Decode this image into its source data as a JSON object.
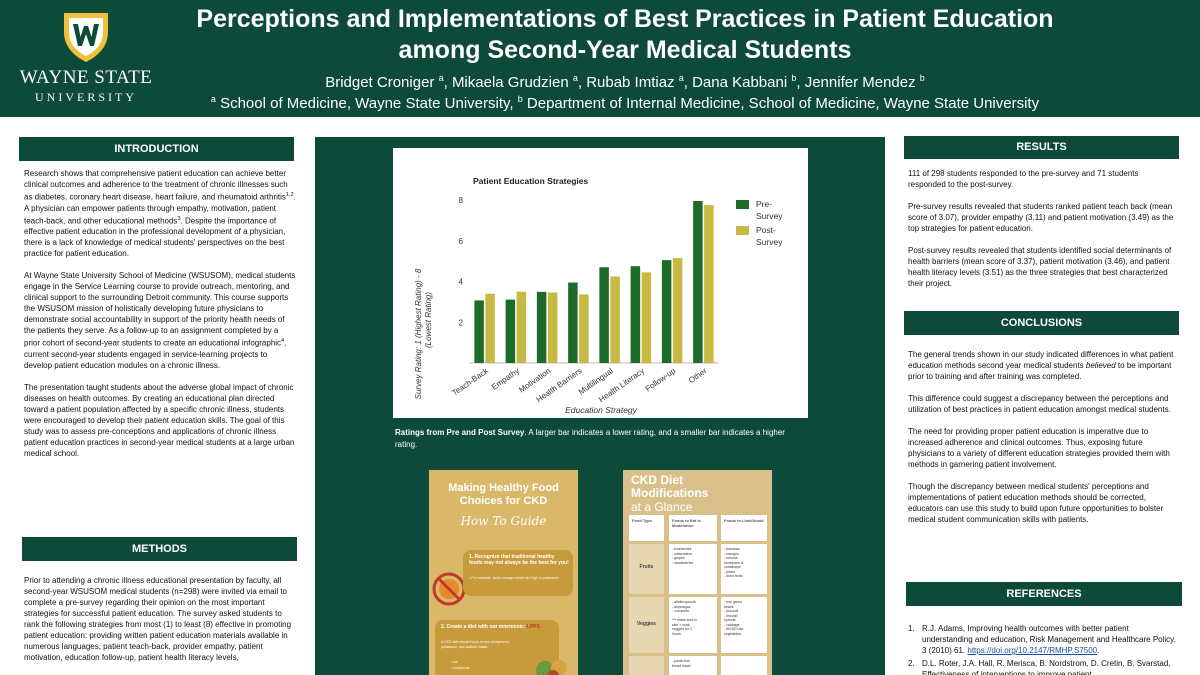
{
  "header": {
    "logo_wordmark": "WAYNE STATE",
    "logo_sub": "UNIVERSITY",
    "title_line1": "Perceptions and Implementations of Best Practices in Patient Education",
    "title_line2": "among Second-Year Medical Students",
    "authors": [
      {
        "name": "Bridget Croniger",
        "sup": "a"
      },
      {
        "name": "Mikaela Grudzien",
        "sup": "a"
      },
      {
        "name": "Rubab Imtiaz",
        "sup": "a"
      },
      {
        "name": "Dana Kabbani",
        "sup": "b"
      },
      {
        "name": "Jennifer Mendez",
        "sup": "b"
      }
    ],
    "affil_a_sup": "a",
    "affil_a": "School of Medicine, Wayne State University,",
    "affil_b_sup": "b",
    "affil_b": "Department of Internal Medicine, School of Medicine, Wayne State University"
  },
  "introduction": {
    "heading": "INTRODUCTION",
    "p1_a": "Research shows that comprehensive patient education can achieve better clinical outcomes and adherence to the treatment of chronic illnesses such as diabetes, coronary heart disease, heart failure, and rheumatoid arthritis",
    "p1_sup1": "1,2",
    "p1_b": ". A physician can empower patients through empathy, motivation, patient teach-back, and other educational methods",
    "p1_sup2": "3",
    "p1_c": ". Despite the importance of effective patient education in the professional development of a physician, there is a lack of knowledge of medical students' perspectives on the best practice for patient education.",
    "p2_a": "At Wayne State University School of Medicine (WSUSOM), medical students engage in the Service Learning course to provide outreach, mentoring, and clinical support to the surrounding Detroit community. This course supports the WSUSOM mission of holistically developing future physicians to demonstrate social accountability in support of the priority health needs of the patients they serve. As a follow-up to an assignment completed by a prior cohort of second-year students to create an educational infographic",
    "p2_sup": "4",
    "p2_b": ", current second-year students engaged in service-learning projects to develop patient education modules on a chronic illness.",
    "p3": "The presentation taught students about the adverse global impact of chronic diseases on health outcomes. By creating an educational plan directed toward a patient population affected by a specific chronic illness, students were encouraged to develop their patient education skills. The goal of this study was to assess pre-conceptions and applications of chronic illness patient education practices in second-year medical students at a large urban medical school."
  },
  "methods": {
    "heading": "METHODS",
    "p1": "Prior to attending a chronic illness educational presentation by faculty, all second-year WSUSOM medical students (n=298) were invited via email to complete a pre-survey regarding their opinion on the most important strategies for successful patient education. The survey asked students to rank the following strategies from most (1) to least (8) effective in promoting patient education: providing written patient education materials available in numerous languages, patient teach-back, provider empathy, patient motivation, education follow-up, patient health literacy levels,"
  },
  "results": {
    "heading": "RESULTS",
    "p1": "111 of 298 students responded to the pre-survey and 71 students responded to the post-survey.",
    "p2": "Pre-survey results revealed that students ranked patient teach back (mean score of 3.07), provider empathy (3.11) and patient motivation (3.49) as the top strategies for patient education.",
    "p3": "Post-survey results revealed that students identified social determinants of health barriers (mean score of 3.37), patient motivation (3.46), and patient health literacy levels (3.51) as the three strategies that best characterized their project."
  },
  "conclusions": {
    "heading": "CONCLUSIONS",
    "p1_a": "The general trends shown in our study indicated differences in what patient education methods second year medical students ",
    "p1_em": "believed",
    "p1_b": " to be important prior to training and after training was completed.",
    "p2": "This difference could suggest a discrepancy between the perceptions and utilization of best practices in patient education amongst medical students.",
    "p3": "The need for providing proper patient education is imperative due to increased adherence and clinical outcomes.  Thus, exposing future physicians to a variety of different education strategies provided them with methods in garnering patient involvement.",
    "p4": "Though the discrepancy between medical students' perceptions and implementations of patient education methods should be corrected, educators can use this study to build upon future opportunities to bolster medical student communication skills with patients."
  },
  "references": {
    "heading": "REFERENCES",
    "r1_num": "1.",
    "r1": "R.J. Adams, Improving health outcomes with better patient understanding and education, Risk Management and Healthcare Policy. 3 (2010) 61. ",
    "r1_link": "https://doi.org/10.2147/RMHP.S7500",
    "r1_end": ".",
    "r2_num": "2.",
    "r2": "D.L. Roter, J.A. Hall, R. Merisca, B. Nordstrom, D. Cretin, B. Svarstad, Effectiveness of interventions to improve patient"
  },
  "chart_caption": {
    "bold": "Ratings from Pre and Post Survey",
    "rest": ". A larger bar indicates a lower rating, and a smaller bar indicates a higher rating."
  },
  "chart_data": {
    "type": "bar",
    "title": "Patient Education Strategies",
    "xlabel": "Education Strategy",
    "ylabel_line1": "Survey Rating:    1 (Highest Rating) - 8",
    "ylabel_line2": "(Lowest Rating)",
    "ylim": [
      0,
      8
    ],
    "yticks": [
      2,
      4,
      6,
      8
    ],
    "categories": [
      "Teach-Back",
      "Empathy",
      "Motivation",
      "Health Barriers",
      "Multilingual",
      "Health Literacy",
      "Follow-up",
      "Other"
    ],
    "series": [
      {
        "name": "Pre-Survey",
        "name_lines": [
          "Pre-",
          "Survey"
        ],
        "color": "#1e6b2a",
        "values": [
          3.07,
          3.11,
          3.49,
          3.95,
          4.7,
          4.75,
          5.05,
          7.95
        ]
      },
      {
        "name": "Post-Survey",
        "name_lines": [
          "Post-",
          "Survey"
        ],
        "color": "#c7b941",
        "values": [
          3.4,
          3.5,
          3.46,
          3.37,
          4.25,
          4.45,
          5.15,
          7.75
        ]
      }
    ],
    "legend": "right",
    "grid": false
  },
  "flyer1": {
    "title_line1": "Making Healthy Food",
    "title_line2": "Choices for CKD",
    "script": "How To Guide",
    "tip1": "1. Recognize that traditional healthy foods may not always be the best for you!",
    "tip1_note": "• For example, avoid oranges which are high in potassium",
    "tip2_a": "2. Create a diet with our mnemonic: ",
    "tip2_em": "LPPS",
    "tip2_note": "A CKD diet should focus on low phosphorus, potassium, and sodium intake:",
    "tip2_items": [
      "• ow",
      "• hosphorus"
    ]
  },
  "flyer2": {
    "title_line1": "CKD Diet",
    "title_line2": "Modifications",
    "subtitle": "at a Glance",
    "col1": "Food Type",
    "col2": "Foods to Eat in Moderation",
    "col3": "Foods to Limit/Avoid",
    "row1_label": "Fruits",
    "row1_eat": "- blueberries\n- watermelon\n- grapes\n- strawberries",
    "row1_avoid": "- bananas\n- oranges\n- melons:\n  honeydew &\n  cantaloupe\n- pears\n- dried fruits",
    "row2_label": "Veggies",
    "row2_eat": "- alfalfa sprouts\n- asparagus\n- cucumber\n\n*** make sure to\nskin + soak\nveggies for 2\nhours",
    "row2_avoid": "- non green\nbeans\n- broccoli\n- brussel\nsprouts\n- cabbage\n- AVOID raw\nvegetables",
    "row3_eat": "- pasta and\nbread made"
  }
}
